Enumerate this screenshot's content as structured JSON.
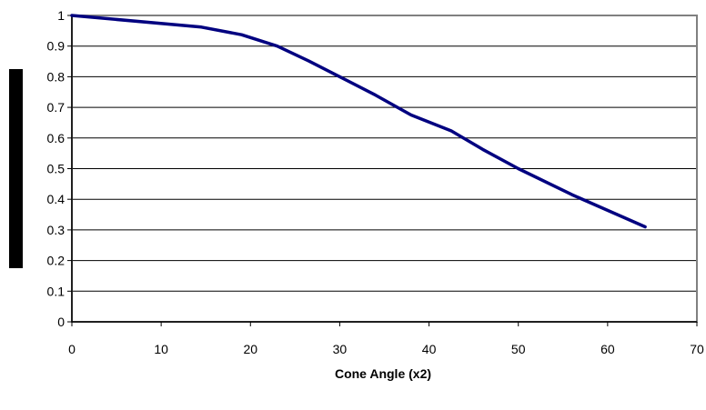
{
  "chart_data": {
    "type": "line",
    "title": "",
    "xlabel": "Cone Angle (x2)",
    "ylabel": "",
    "xlim": [
      0,
      70
    ],
    "ylim": [
      0,
      1
    ],
    "x_ticks": [
      0,
      10,
      20,
      30,
      40,
      50,
      60,
      70
    ],
    "x_tick_labels": [
      "0",
      "10",
      "20",
      "30",
      "40",
      "50",
      "60",
      "70"
    ],
    "y_ticks": [
      0,
      0.1,
      0.2,
      0.3,
      0.4,
      0.5,
      0.6,
      0.7,
      0.8,
      0.9,
      1
    ],
    "y_tick_labels": [
      "0",
      "0.1",
      "0.2",
      "0.3",
      "0.4",
      "0.5",
      "0.6",
      "0.7",
      "0.8",
      "0.9",
      "1"
    ],
    "grid": "horizontal",
    "legend": "none",
    "series": [
      {
        "color": "#000080",
        "points": [
          {
            "x": 0,
            "y": 1.0
          },
          {
            "x": 14.5,
            "y": 0.962
          },
          {
            "x": 19,
            "y": 0.937
          },
          {
            "x": 23,
            "y": 0.9
          },
          {
            "x": 26.5,
            "y": 0.852
          },
          {
            "x": 30,
            "y": 0.8
          },
          {
            "x": 34,
            "y": 0.74
          },
          {
            "x": 38,
            "y": 0.675
          },
          {
            "x": 42.5,
            "y": 0.623
          },
          {
            "x": 46,
            "y": 0.563
          },
          {
            "x": 50,
            "y": 0.5
          },
          {
            "x": 56,
            "y": 0.415
          },
          {
            "x": 64.2,
            "y": 0.31
          }
        ]
      }
    ],
    "plot_border_color": "#808080",
    "gridline_color": "#000000"
  }
}
